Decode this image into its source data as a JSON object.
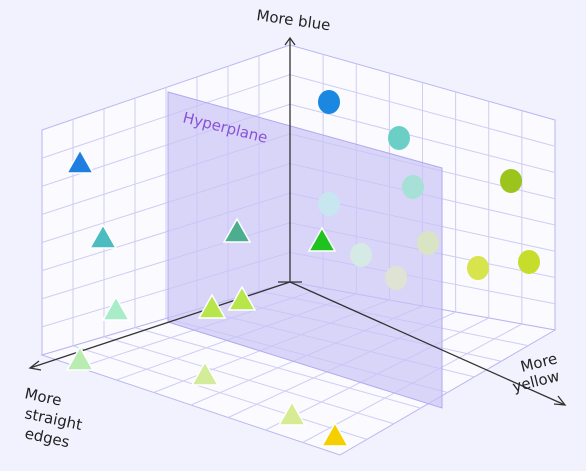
{
  "axes": {
    "up": {
      "label": "More blue"
    },
    "left": {
      "label_lines": [
        "More",
        "straight",
        "edges"
      ]
    },
    "right": {
      "label_lines": [
        "More",
        "yellow"
      ]
    }
  },
  "hyperplane": {
    "label": "Hyperplane"
  }
}
